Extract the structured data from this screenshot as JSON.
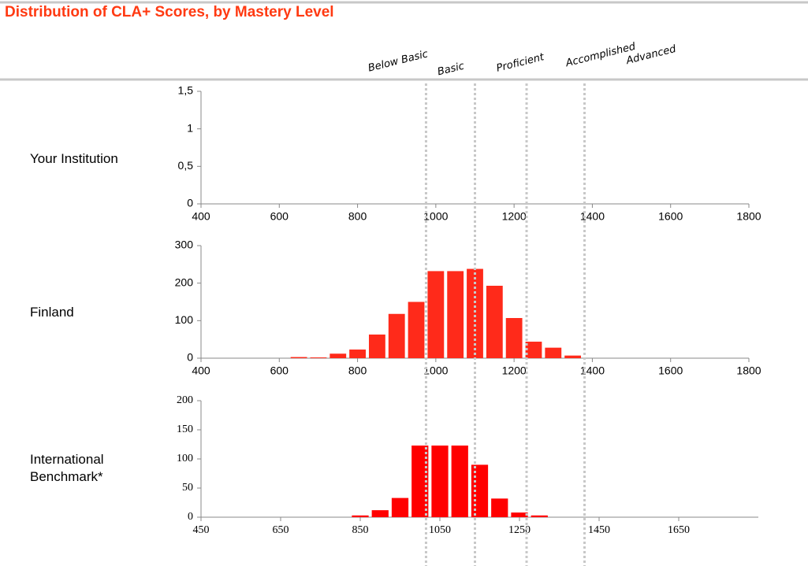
{
  "title": "Distribution of CLA+ Scores, by Mastery Level",
  "mastery_levels": [
    "Below Basic",
    "Basic",
    "Proficient",
    "Accomplished",
    "Advanced"
  ],
  "mastery_cutoffs": [
    975,
    1100,
    1232,
    1380
  ],
  "chart_data": [
    {
      "type": "histogram",
      "label": "Your Institution",
      "color": "#ff2a1a",
      "bins": [],
      "values": [],
      "xlim": [
        400,
        1800
      ],
      "xticks": [
        400,
        600,
        800,
        1000,
        1200,
        1400,
        1600,
        1800
      ],
      "ylim": [
        0,
        1.5
      ],
      "yticks": [
        0,
        {
          "value": 0.5,
          "label": "0,5"
        },
        1,
        {
          "value": 1.5,
          "label": "1,5"
        }
      ]
    },
    {
      "type": "histogram",
      "label": "Finland",
      "color": "#ff2a1a",
      "bins": [
        625,
        675,
        725,
        775,
        825,
        875,
        925,
        975,
        1025,
        1075,
        1125,
        1175,
        1225,
        1275,
        1325,
        1375
      ],
      "values": [
        3,
        2,
        12,
        23,
        63,
        118,
        150,
        232,
        232,
        238,
        193,
        107,
        44,
        28,
        7
      ],
      "xlim": [
        400,
        1800
      ],
      "xticks": [
        400,
        600,
        800,
        1000,
        1200,
        1400,
        1600,
        1800
      ],
      "ylim": [
        0,
        300
      ],
      "yticks": [
        0,
        100,
        200,
        300
      ]
    },
    {
      "type": "histogram",
      "label": "International Benchmark*",
      "color": "#ff0000",
      "bins": [
        825,
        875,
        925,
        975,
        1025,
        1075,
        1125,
        1175,
        1225,
        1275,
        1325
      ],
      "values": [
        3,
        12,
        33,
        123,
        123,
        123,
        90,
        32,
        8,
        3
      ],
      "xlim": [
        450,
        1850
      ],
      "xticks": [
        450,
        650,
        850,
        1050,
        1250,
        1450,
        1650
      ],
      "ylim": [
        0,
        200
      ],
      "yticks": [
        0,
        50,
        100,
        150,
        200
      ],
      "serif": true
    }
  ]
}
